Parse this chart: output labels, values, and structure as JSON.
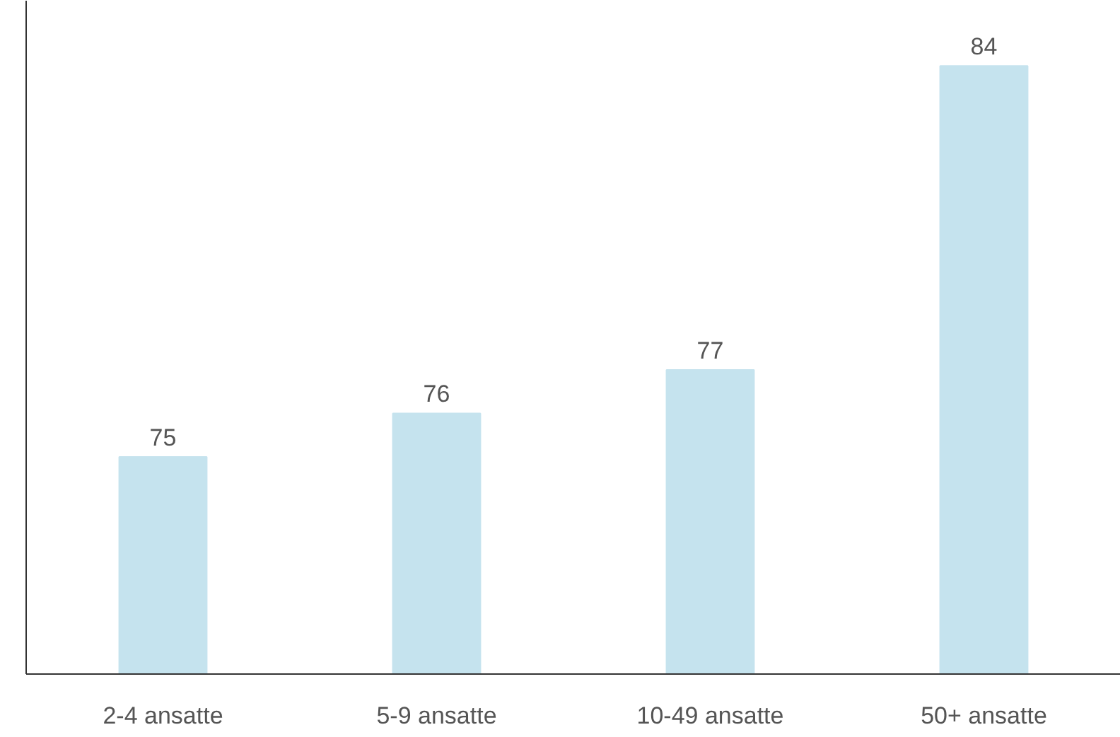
{
  "chart_data": {
    "type": "bar",
    "categories": [
      "2-4 ansatte",
      "5-9 ansatte",
      "10-49 ansatte",
      "50+ ansatte"
    ],
    "values": [
      75,
      76,
      77,
      84
    ],
    "color": "#c5e3ee",
    "data_labels": true,
    "ylim": [
      70,
      85.5
    ],
    "grid": false
  }
}
